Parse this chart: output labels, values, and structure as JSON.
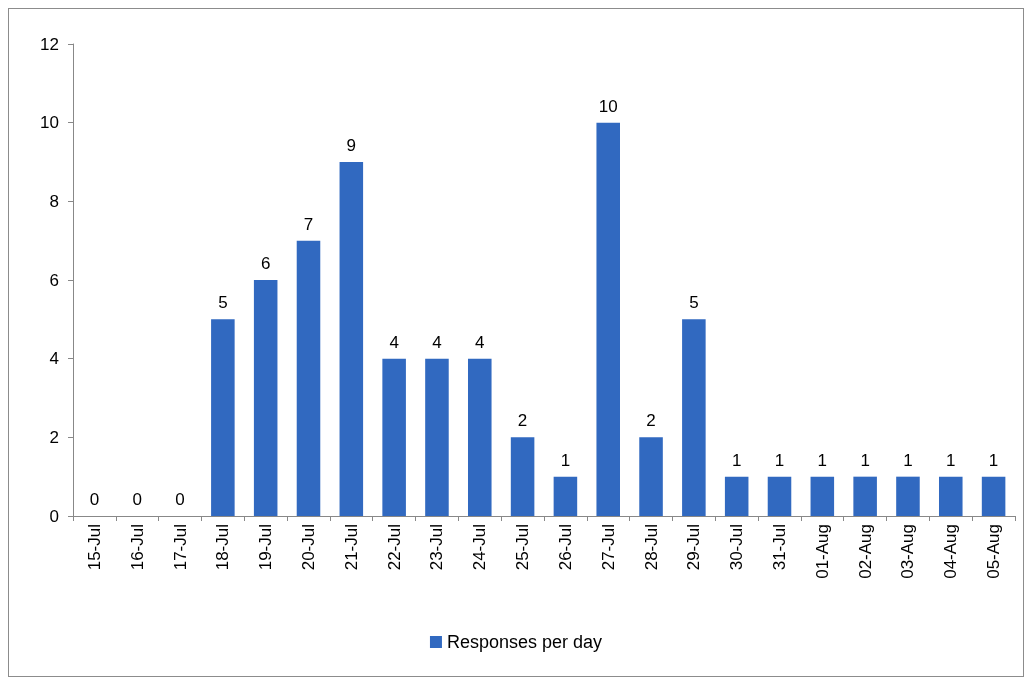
{
  "chart_data": {
    "type": "bar",
    "categories": [
      "15-Jul",
      "16-Jul",
      "17-Jul",
      "18-Jul",
      "19-Jul",
      "20-Jul",
      "21-Jul",
      "22-Jul",
      "23-Jul",
      "24-Jul",
      "25-Jul",
      "26-Jul",
      "27-Jul",
      "28-Jul",
      "29-Jul",
      "30-Jul",
      "31-Jul",
      "01-Aug",
      "02-Aug",
      "03-Aug",
      "04-Aug",
      "05-Aug"
    ],
    "series": [
      {
        "name": "Responses per day",
        "color": "#3169c0",
        "values": [
          0,
          0,
          0,
          5,
          6,
          7,
          9,
          4,
          4,
          4,
          2,
          1,
          10,
          2,
          5,
          1,
          1,
          1,
          1,
          1,
          1,
          1
        ]
      }
    ],
    "ylim": [
      0,
      12
    ],
    "yticks": [
      0,
      2,
      4,
      6,
      8,
      10,
      12
    ],
    "grid": false,
    "legend": "bottom",
    "data_labels": true
  }
}
